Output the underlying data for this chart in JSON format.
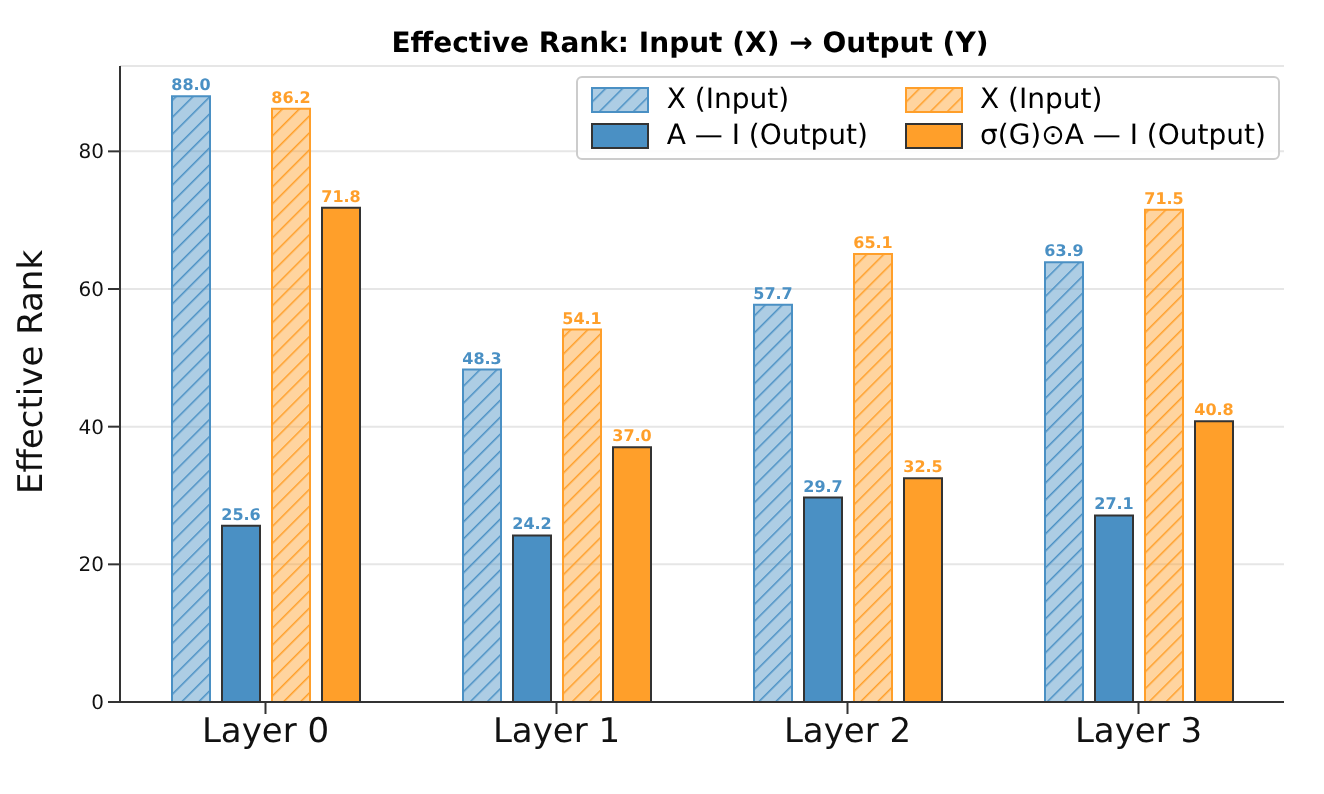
{
  "chart_data": {
    "type": "bar",
    "title": "Effective Rank: Input (X) → Output (Y)",
    "ylabel": "Effective Rank",
    "categories": [
      "Layer 0",
      "Layer 1",
      "Layer 2",
      "Layer 3"
    ],
    "series": [
      {
        "name": "X (Input)",
        "color": "#4a90c4",
        "values": [
          88.0,
          48.3,
          57.7,
          63.9
        ],
        "value_labels": [
          "88.0",
          "48.3",
          "57.7",
          "63.9"
        ]
      },
      {
        "name": "A — I (Output)",
        "color": "#4a90c4",
        "values": [
          25.6,
          24.2,
          29.7,
          27.1
        ],
        "value_labels": [
          "25.6",
          "24.2",
          "29.7",
          "27.1"
        ]
      },
      {
        "name": "X (Input)",
        "color": "#ff9f2a",
        "values": [
          86.2,
          54.1,
          65.1,
          71.5
        ],
        "value_labels": [
          "86.2",
          "54.1",
          "65.1",
          "71.5"
        ]
      },
      {
        "name": "σ(G)⊙A — I (Output)",
        "color": "#ff9f2a",
        "values": [
          71.8,
          37.0,
          32.5,
          40.8
        ],
        "value_labels": [
          "71.8",
          "37.0",
          "32.5",
          "40.8"
        ]
      }
    ],
    "ylim": [
      0,
      92.4
    ],
    "yticks": [
      0,
      20,
      40,
      60,
      80
    ],
    "grid": "y",
    "legend": "top right"
  }
}
